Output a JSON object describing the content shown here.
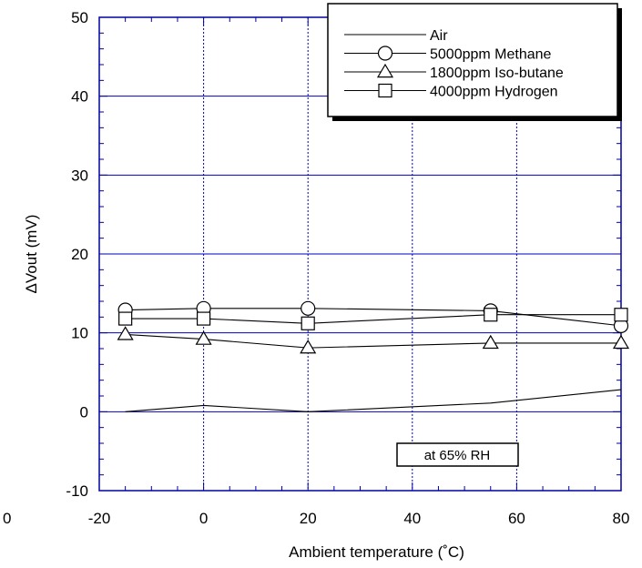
{
  "chart_data": {
    "type": "line",
    "xlabel": "Ambient temperature (˚C)",
    "ylabel": "ΔVout (mV)",
    "xlim": [
      -20,
      80
    ],
    "ylim": [
      -10,
      50
    ],
    "x_ticks": [
      -20,
      0,
      20,
      40,
      60,
      80
    ],
    "y_ticks": [
      -10,
      0,
      10,
      20,
      30,
      40,
      50
    ],
    "stray_tick_label": "0",
    "grid": true,
    "legend_position": "top-right",
    "annotation": "at 65% RH",
    "series": [
      {
        "name": "Air",
        "marker": "none",
        "x": [
          -15,
          0,
          20,
          55,
          80
        ],
        "y": [
          0.0,
          0.8,
          0.0,
          1.1,
          2.8
        ]
      },
      {
        "name": "5000ppm Methane",
        "marker": "circle",
        "x": [
          -15,
          0,
          20,
          55,
          80
        ],
        "y": [
          12.9,
          13.1,
          13.1,
          12.8,
          10.9
        ]
      },
      {
        "name": "1800ppm Iso-butane",
        "marker": "triangle",
        "x": [
          -15,
          0,
          20,
          55,
          80
        ],
        "y": [
          9.8,
          9.2,
          8.1,
          8.7,
          8.7
        ]
      },
      {
        "name": "4000ppm Hydrogen",
        "marker": "square",
        "x": [
          -15,
          0,
          20,
          55,
          80
        ],
        "y": [
          11.8,
          11.8,
          11.2,
          12.3,
          12.3
        ]
      }
    ]
  }
}
